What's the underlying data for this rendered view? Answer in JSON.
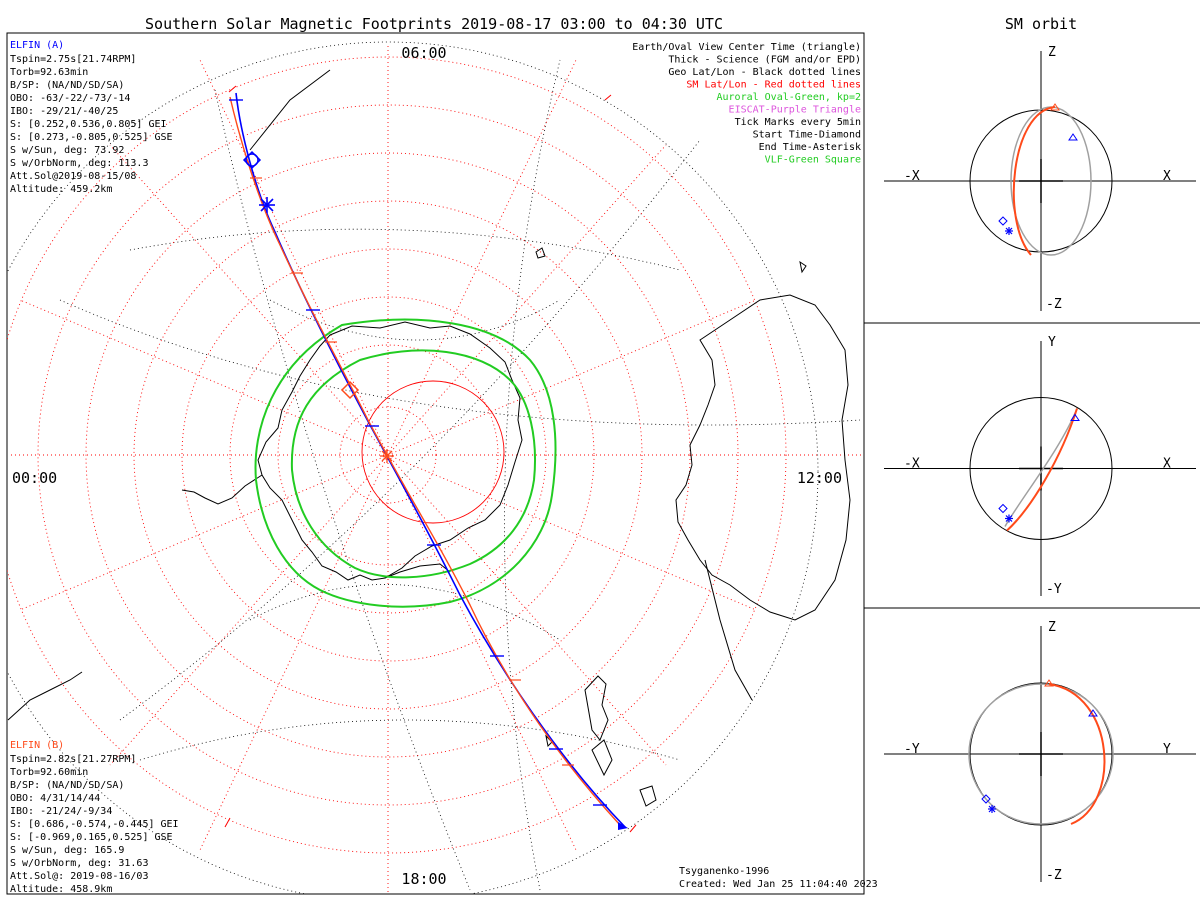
{
  "title": "Southern Solar Magnetic Footprints 2019-08-17 03:00 to 04:30 UTC",
  "orbit_title": "SM orbit",
  "clock": {
    "top": "06:00",
    "left": "00:00",
    "right": "12:00",
    "bottom": "18:00"
  },
  "elfin_a": {
    "name": "ELFIN (A)",
    "color": "#0000ff",
    "lines": [
      "Tspin=2.75s[21.74RPM]",
      "Torb=92.63min",
      "B/SP: (NA/ND/SD/SA)",
      "OBO: -63/-22/-73/-14",
      "IBO: -29/21/-40/25",
      "S: [0.252,0.536,0.805] GEI",
      "S: [0.273,-0.805,0.525] GSE",
      "S w/Sun, deg: 73.92",
      "S w/OrbNorm, deg: 113.3",
      "Att.Sol@2019-08-15/08",
      "Altitude: 459.2km"
    ]
  },
  "elfin_b": {
    "name": "ELFIN (B)",
    "color": "#ff4a1a",
    "lines": [
      "Tspin=2.82s[21.27RPM]",
      "Torb=92.60min",
      "B/SP: (NA/ND/SD/SA)",
      "OBO: 4/31/14/44",
      "IBO: -21/24/-9/34",
      "S: [0.686,-0.574,-0.445] GEI",
      "S: [-0.969,0.165,0.525] GSE",
      "S w/Sun, deg: 165.9",
      "S w/OrbNorm, deg: 31.63",
      "Att.Sol@: 2019-08-16/03",
      "Altitude: 458.9km"
    ]
  },
  "legend": [
    {
      "text": "Earth/Oval View Center Time (triangle)",
      "color": "#000000"
    },
    {
      "text": "Thick - Science (FGM and/or EPD)",
      "color": "#000000"
    },
    {
      "text": "Geo Lat/Lon - Black dotted lines",
      "color": "#000000"
    },
    {
      "text": "SM Lat/Lon - Red dotted lines",
      "color": "#ff0000"
    },
    {
      "text": "Auroral Oval-Green, kp=2",
      "color": "#22cc22"
    },
    {
      "text": "EISCAT-Purple Triangle",
      "color": "#dd55dd"
    },
    {
      "text": "Tick Marks every 5min",
      "color": "#000000"
    },
    {
      "text": "Start Time-Diamond",
      "color": "#000000"
    },
    {
      "text": "End Time-Asterisk",
      "color": "#000000"
    },
    {
      "text": "VLF-Green Square",
      "color": "#22cc22"
    }
  ],
  "credit": "Tsyganenko-1996",
  "created": "Created: Wed Jan 25 11:04:40 2023",
  "orbit_panels": [
    {
      "up": "Z",
      "down": "-Z",
      "left": "-X",
      "right": "X"
    },
    {
      "up": "Y",
      "down": "-Y",
      "left": "-X",
      "right": "X"
    },
    {
      "up": "Z",
      "down": "-Z",
      "left": "-Y",
      "right": "Y"
    }
  ]
}
